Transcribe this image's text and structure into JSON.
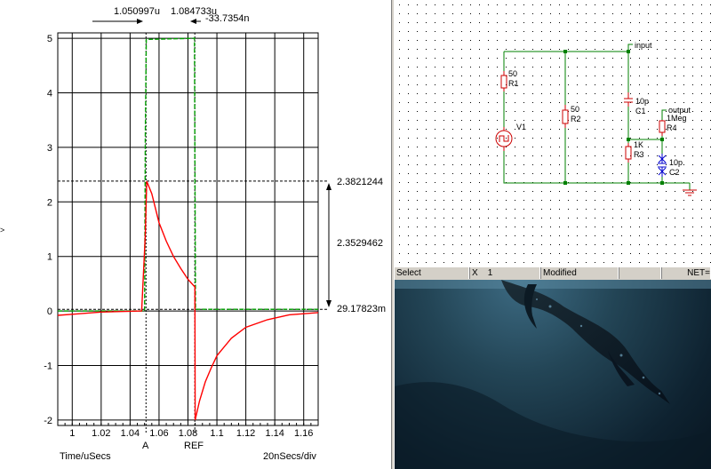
{
  "plot": {
    "cursor_a_time": "1.050997u",
    "cursor_ref_time": "1.084733u",
    "cursor_delta_time": "-33.7354n",
    "cursor_a_label": "A",
    "cursor_ref_label": "REF",
    "value_top": "2.3821244",
    "value_delta": "2.3529462",
    "value_bottom": "29.17823m",
    "x_axis_label": "Time/uSecs",
    "x_div_label": "20nSecs/div",
    "colors": {
      "green": "#00a000",
      "red": "#ff0000",
      "grid": "#000000"
    }
  },
  "chart_data": {
    "type": "line",
    "xlabel": "Time/uSecs",
    "ylabel": "",
    "xlim": [
      0.99,
      1.17
    ],
    "ylim": [
      -2.1,
      5.1
    ],
    "x_ticks": [
      "1",
      "1.02",
      "1.04",
      "1.06",
      "1.08",
      "1.1",
      "1.12",
      "1.14",
      "1.16"
    ],
    "x_tick_values": [
      1,
      1.02,
      1.04,
      1.06,
      1.08,
      1.1,
      1.12,
      1.14,
      1.16
    ],
    "y_ticks": [
      "5",
      "4",
      "3",
      "2",
      "1",
      "0",
      "-1",
      "-2"
    ],
    "y_tick_values": [
      5,
      4,
      3,
      2,
      1,
      0,
      -1,
      -2
    ],
    "grid": true,
    "series": [
      {
        "color": "#00a000",
        "dashed": true,
        "x": [
          0.99,
          1.05,
          1.0505,
          1.0512,
          1.0845,
          1.0852,
          1.17
        ],
        "y": [
          0,
          0,
          3.2,
          4.98,
          5.0,
          0.03,
          0.03
        ]
      },
      {
        "color": "#ff0000",
        "dashed": false,
        "x": [
          0.99,
          1.0,
          1.02,
          1.04,
          1.048,
          1.0505,
          1.0515,
          1.055,
          1.06,
          1.065,
          1.07,
          1.075,
          1.08,
          1.0845,
          1.0848,
          1.085,
          1.088,
          1.092,
          1.096,
          1.1,
          1.11,
          1.12,
          1.135,
          1.15,
          1.17
        ],
        "y": [
          -0.08,
          -0.06,
          -0.02,
          -0.005,
          0.0,
          1.4,
          2.38,
          2.15,
          1.62,
          1.28,
          1.0,
          0.78,
          0.58,
          0.45,
          0.45,
          -2.0,
          -1.65,
          -1.3,
          -1.05,
          -0.82,
          -0.5,
          -0.3,
          -0.16,
          -0.07,
          -0.03
        ]
      }
    ],
    "cursors": [
      {
        "label": "A",
        "x": 1.050997
      },
      {
        "label": "REF",
        "x": 1.084733
      }
    ],
    "h_markers": [
      2.3821244,
      0.02917823
    ]
  },
  "schematic": {
    "labels": {
      "input": "input",
      "output": "output",
      "r1_value": "50",
      "r1_name": "R1",
      "r2_value": "50",
      "r2_name": "R2",
      "v1_name": "V1",
      "c1_value": "10p",
      "c1_name": "C1",
      "r3_value": "1K",
      "r3_name": "R3",
      "r4_value": "1Meg",
      "r4_name": "R4",
      "c2_value": "10p",
      "c2_name": "C2"
    },
    "colors": {
      "wire": "#008000",
      "component": "#cc0000",
      "capacitor_var": "#0000cc",
      "dot": "#000000"
    }
  },
  "statusbar": {
    "mode": "Select",
    "x_label": "X",
    "x_value": "1",
    "modified": "Modified",
    "net": "NET="
  }
}
